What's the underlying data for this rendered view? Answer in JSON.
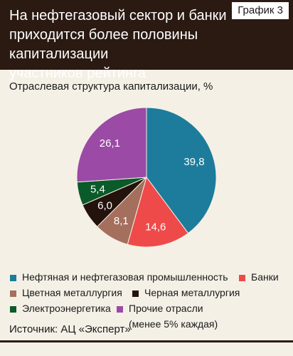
{
  "header": {
    "title": "На нефтегазовый сектор и банки\nприходится более половины капитализации\nучастников рейтинга",
    "badge": "График 3"
  },
  "subtitle": "Отраслевая структура капитализации, %",
  "source": "Источник: АЦ «Эксперт»",
  "colors": {
    "header_bg": "#2a1a12",
    "background": "#f4f0e6"
  },
  "chart_data": {
    "type": "pie",
    "title": "Отраслевая структура капитализации, %",
    "series": [
      {
        "name": "Нефтяная и нефтегазовая промышленность",
        "value": 39.8,
        "label": "39,8",
        "color": "#1d7c9b",
        "text_color": "#ffffff"
      },
      {
        "name": "Банки",
        "value": 14.6,
        "label": "14,6",
        "color": "#ef4a4a",
        "text_color": "#ffffff"
      },
      {
        "name": "Цветная металлургия",
        "value": 8.1,
        "label": "8,1",
        "color": "#a46f5c",
        "text_color": "#ffffff"
      },
      {
        "name": "Черная металлургия",
        "value": 6.0,
        "label": "6,0",
        "color": "#24130c",
        "text_color": "#ffffff"
      },
      {
        "name": "Электроэнергетика",
        "value": 5.4,
        "label": "5,4",
        "color": "#0b5a2a",
        "text_color": "#ffffff"
      },
      {
        "name": "Прочие отрасли\n(менее 5% каждая)",
        "value": 26.1,
        "label": "26,1",
        "color": "#9b4aa6",
        "text_color": "#ffffff"
      }
    ],
    "legend_placement": "bottom"
  }
}
